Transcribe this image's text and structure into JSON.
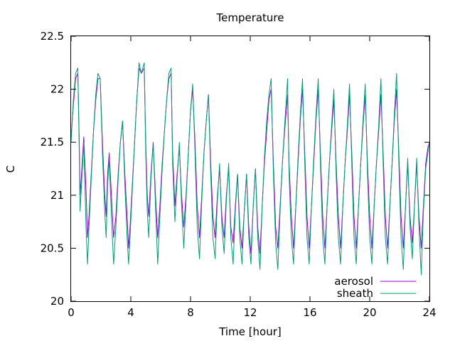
{
  "chart_data": {
    "type": "line",
    "title": "Temperature",
    "xlabel": "Time [hour]",
    "ylabel": "C",
    "xlim": [
      0,
      24
    ],
    "ylim": [
      20,
      22.5
    ],
    "xticks": [
      0,
      4,
      8,
      12,
      16,
      20,
      24
    ],
    "yticks": [
      20,
      20.5,
      21,
      21.5,
      22,
      22.5
    ],
    "xtick_labels": [
      "0",
      "4",
      "8",
      "12",
      "16",
      "20",
      "24"
    ],
    "ytick_labels": [
      "20",
      "20.5",
      "21",
      "21.5",
      "22",
      "22.5"
    ],
    "grid": false,
    "legend_position": "bottom-right",
    "series": [
      {
        "name": "aerosol",
        "color": "#9400d3",
        "x": [
          0,
          0.15,
          0.3,
          0.45,
          0.55,
          0.6,
          0.7,
          0.85,
          1.0,
          1.1,
          1.2,
          1.35,
          1.5,
          1.65,
          1.8,
          1.95,
          2.1,
          2.25,
          2.35,
          2.45,
          2.55,
          2.7,
          2.85,
          3.0,
          3.15,
          3.3,
          3.45,
          3.6,
          3.75,
          3.85,
          3.95,
          4.1,
          4.25,
          4.4,
          4.55,
          4.7,
          4.9,
          5.0,
          5.1,
          5.2,
          5.35,
          5.5,
          5.65,
          5.8,
          5.95,
          6.1,
          6.25,
          6.4,
          6.55,
          6.7,
          6.8,
          6.95,
          7.1,
          7.25,
          7.4,
          7.55,
          7.7,
          7.85,
          8.0,
          8.15,
          8.3,
          8.45,
          8.6,
          8.75,
          8.9,
          9.05,
          9.2,
          9.35,
          9.5,
          9.65,
          9.8,
          9.95,
          10.1,
          10.25,
          10.4,
          10.55,
          10.7,
          10.85,
          11.0,
          11.15,
          11.3,
          11.45,
          11.6,
          11.75,
          11.9,
          12.05,
          12.2,
          12.35,
          12.5,
          12.65,
          12.8,
          12.95,
          13.1,
          13.25,
          13.4,
          13.55,
          13.7,
          13.85,
          14.0,
          14.15,
          14.3,
          14.5,
          14.6,
          14.75,
          14.9,
          15.05,
          15.2,
          15.35,
          15.5,
          15.65,
          15.8,
          15.95,
          16.1,
          16.25,
          16.4,
          16.55,
          16.7,
          16.85,
          17.0,
          17.15,
          17.3,
          17.45,
          17.6,
          17.75,
          17.9,
          18.05,
          18.2,
          18.35,
          18.5,
          18.65,
          18.8,
          18.95,
          19.1,
          19.25,
          19.4,
          19.55,
          19.7,
          19.85,
          20.0,
          20.15,
          20.3,
          20.45,
          20.6,
          20.75,
          20.9,
          21.05,
          21.2,
          21.35,
          21.5,
          21.65,
          21.8,
          21.95,
          22.1,
          22.25,
          22.4,
          22.55,
          22.7,
          22.85,
          23.0,
          23.15,
          23.3,
          23.45,
          23.6,
          23.75,
          23.9,
          24.0
        ],
        "y": [
          21.55,
          21.85,
          22.1,
          22.15,
          21.5,
          21.0,
          21.2,
          21.55,
          21.05,
          20.6,
          20.8,
          21.2,
          21.6,
          21.9,
          22.1,
          22.1,
          21.5,
          21.0,
          20.8,
          21.2,
          21.4,
          21.0,
          20.6,
          20.8,
          21.2,
          21.5,
          21.7,
          21.2,
          20.8,
          20.5,
          20.7,
          21.1,
          21.5,
          21.9,
          22.2,
          22.15,
          22.2,
          21.5,
          21.0,
          20.8,
          21.2,
          21.5,
          21.0,
          20.6,
          20.9,
          21.3,
          21.6,
          21.9,
          22.1,
          22.15,
          21.4,
          20.9,
          21.2,
          21.45,
          21.0,
          20.7,
          21.0,
          21.4,
          21.8,
          22.0,
          21.5,
          20.9,
          20.6,
          21.0,
          21.4,
          21.7,
          21.95,
          21.3,
          20.8,
          20.6,
          21.0,
          21.25,
          20.8,
          20.6,
          21.0,
          21.25,
          20.7,
          20.55,
          20.9,
          21.2,
          20.7,
          20.5,
          20.85,
          21.2,
          20.7,
          20.45,
          20.9,
          21.25,
          20.7,
          20.45,
          20.9,
          21.3,
          21.6,
          21.9,
          22.0,
          21.3,
          20.7,
          20.5,
          20.9,
          21.3,
          21.6,
          21.95,
          21.3,
          20.8,
          20.5,
          20.9,
          21.3,
          21.7,
          22.0,
          21.4,
          20.8,
          20.5,
          20.9,
          21.3,
          21.7,
          22.0,
          21.4,
          20.8,
          20.5,
          20.9,
          21.3,
          21.6,
          21.9,
          21.3,
          20.8,
          20.5,
          20.9,
          21.3,
          21.6,
          21.95,
          21.4,
          20.8,
          20.5,
          20.9,
          21.3,
          21.65,
          21.95,
          21.3,
          20.8,
          20.5,
          20.9,
          21.3,
          21.6,
          21.95,
          21.4,
          20.8,
          20.5,
          20.9,
          21.3,
          21.7,
          22.0,
          21.4,
          20.8,
          20.5,
          20.9,
          21.3,
          20.8,
          20.55,
          20.9,
          21.3,
          20.8,
          20.5,
          20.9,
          21.3,
          21.45,
          21.5
        ]
      },
      {
        "name": "sheath",
        "color": "#009e73",
        "x": [
          0,
          0.15,
          0.3,
          0.45,
          0.55,
          0.6,
          0.7,
          0.85,
          1.0,
          1.1,
          1.2,
          1.35,
          1.5,
          1.65,
          1.8,
          1.95,
          2.1,
          2.25,
          2.35,
          2.45,
          2.55,
          2.7,
          2.85,
          3.0,
          3.15,
          3.3,
          3.45,
          3.6,
          3.75,
          3.85,
          3.95,
          4.1,
          4.25,
          4.4,
          4.55,
          4.7,
          4.9,
          5.0,
          5.1,
          5.2,
          5.35,
          5.5,
          5.65,
          5.8,
          5.95,
          6.1,
          6.25,
          6.4,
          6.55,
          6.7,
          6.8,
          6.95,
          7.1,
          7.25,
          7.4,
          7.55,
          7.7,
          7.85,
          8.0,
          8.15,
          8.3,
          8.45,
          8.6,
          8.75,
          8.9,
          9.05,
          9.2,
          9.35,
          9.5,
          9.65,
          9.8,
          9.95,
          10.1,
          10.25,
          10.4,
          10.55,
          10.7,
          10.85,
          11.0,
          11.15,
          11.3,
          11.45,
          11.6,
          11.75,
          11.9,
          12.05,
          12.2,
          12.35,
          12.5,
          12.65,
          12.8,
          12.95,
          13.1,
          13.25,
          13.4,
          13.55,
          13.7,
          13.85,
          14.0,
          14.15,
          14.3,
          14.5,
          14.6,
          14.75,
          14.9,
          15.05,
          15.2,
          15.35,
          15.5,
          15.65,
          15.8,
          15.95,
          16.1,
          16.25,
          16.4,
          16.55,
          16.7,
          16.85,
          17.0,
          17.15,
          17.3,
          17.45,
          17.6,
          17.75,
          17.9,
          18.05,
          18.2,
          18.35,
          18.5,
          18.65,
          18.8,
          18.95,
          19.1,
          19.25,
          19.4,
          19.55,
          19.7,
          19.85,
          20.0,
          20.15,
          20.3,
          20.45,
          20.6,
          20.75,
          20.9,
          21.05,
          21.2,
          21.35,
          21.5,
          21.65,
          21.8,
          21.95,
          22.1,
          22.25,
          22.4,
          22.55,
          22.7,
          22.85,
          23.0,
          23.15,
          23.3,
          23.45,
          23.6,
          23.75,
          23.9,
          24.0
        ],
        "y": [
          21.5,
          21.9,
          22.15,
          22.2,
          21.4,
          20.85,
          21.1,
          21.5,
          20.7,
          20.35,
          20.7,
          21.15,
          21.6,
          21.95,
          22.15,
          22.1,
          21.4,
          20.85,
          20.6,
          21.1,
          21.35,
          20.8,
          20.35,
          20.7,
          21.15,
          21.5,
          21.7,
          21.1,
          20.6,
          20.35,
          20.6,
          21.05,
          21.5,
          21.9,
          22.25,
          22.15,
          22.25,
          21.4,
          20.85,
          20.6,
          21.15,
          21.5,
          20.9,
          20.35,
          20.8,
          21.25,
          21.6,
          21.9,
          22.15,
          22.2,
          21.3,
          20.75,
          21.15,
          21.5,
          20.9,
          20.5,
          20.95,
          21.4,
          21.8,
          22.05,
          21.4,
          20.7,
          20.4,
          20.95,
          21.4,
          21.7,
          21.95,
          21.2,
          20.6,
          20.4,
          20.95,
          21.3,
          20.7,
          20.45,
          20.95,
          21.3,
          20.6,
          20.35,
          20.85,
          21.2,
          20.6,
          20.35,
          20.85,
          21.2,
          20.6,
          20.35,
          20.9,
          21.25,
          20.6,
          20.3,
          20.9,
          21.35,
          21.7,
          21.95,
          22.1,
          21.2,
          20.55,
          20.3,
          20.85,
          21.3,
          21.65,
          22.1,
          21.2,
          20.6,
          20.35,
          20.9,
          21.35,
          21.75,
          22.1,
          21.3,
          20.6,
          20.35,
          20.9,
          21.35,
          21.75,
          22.1,
          21.3,
          20.6,
          20.35,
          20.9,
          21.3,
          21.65,
          22.0,
          21.2,
          20.6,
          20.35,
          20.9,
          21.3,
          21.65,
          22.05,
          21.3,
          20.6,
          20.35,
          20.9,
          21.3,
          21.7,
          22.05,
          21.2,
          20.6,
          20.35,
          20.9,
          21.3,
          21.65,
          22.1,
          21.3,
          20.6,
          20.35,
          20.9,
          21.3,
          21.75,
          22.15,
          21.3,
          20.6,
          20.3,
          20.9,
          21.35,
          20.7,
          20.4,
          20.9,
          21.35,
          20.7,
          20.25,
          20.85,
          21.25,
          21.4,
          21.5
        ]
      }
    ]
  }
}
